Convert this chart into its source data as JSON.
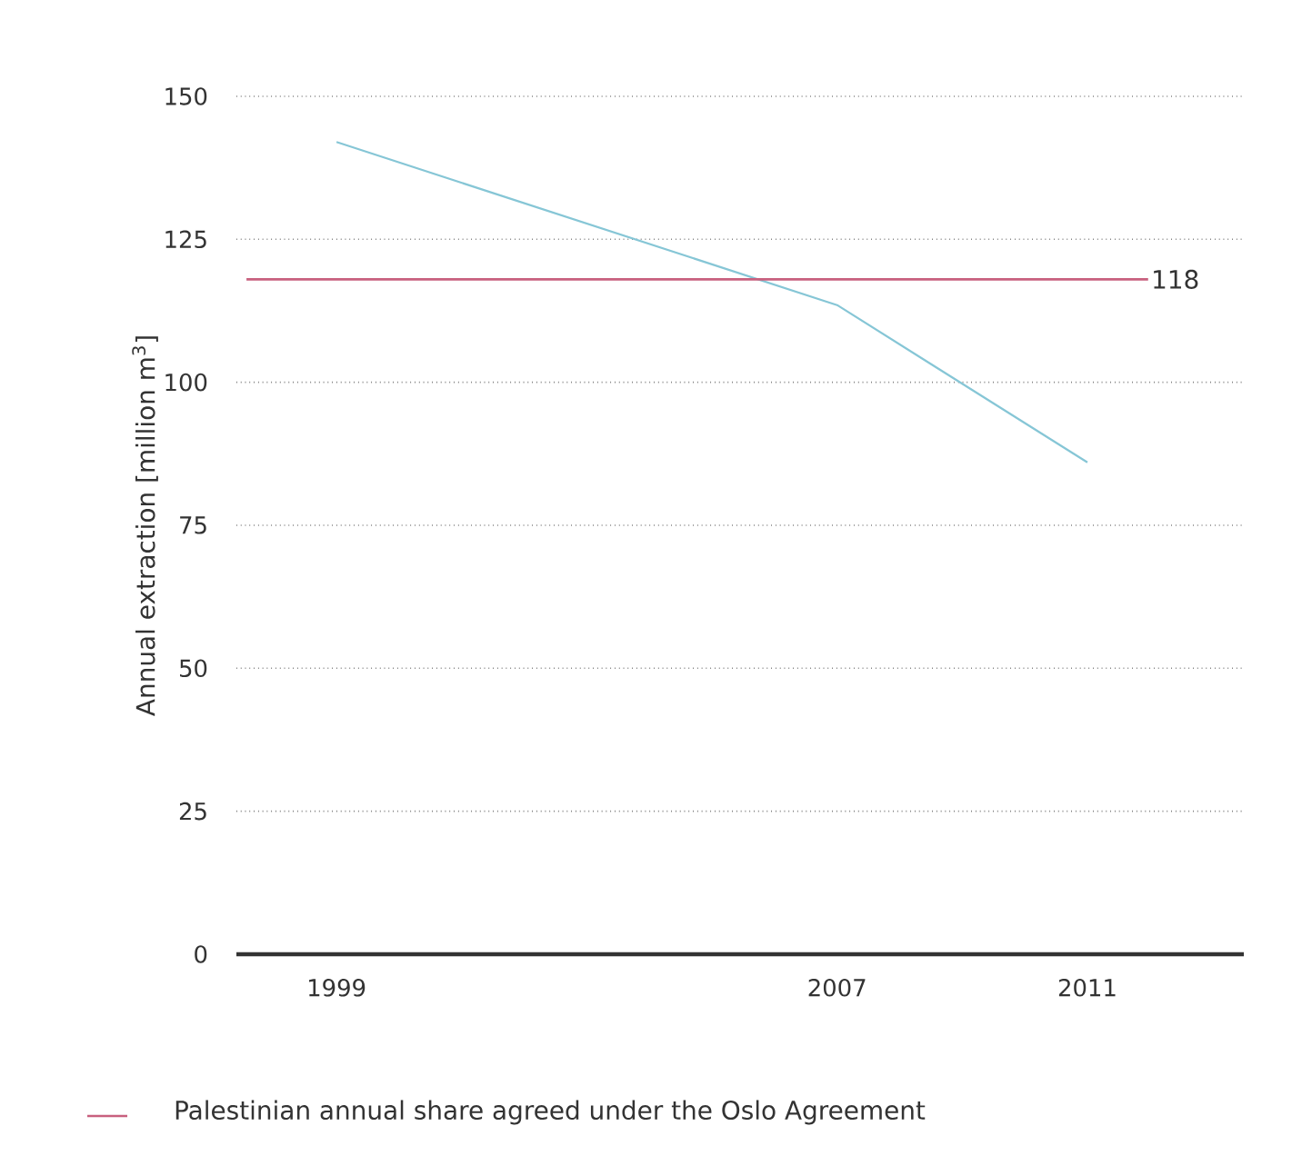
{
  "chart_data": {
    "type": "line",
    "ylabel": "Annual extraction [million m$^{3}$]",
    "x": [
      1999,
      2007,
      2011
    ],
    "series": [
      {
        "color": "#86c6d6",
        "values": [
          142,
          113.5,
          86
        ]
      }
    ],
    "xlim": [
      1997.4,
      2013.5
    ],
    "xticks": [
      1999,
      2007,
      2011
    ],
    "ylim": [
      0,
      150
    ],
    "yticks": [
      0,
      25,
      50,
      75,
      100,
      125,
      150
    ],
    "grid": "y",
    "marker": "none",
    "line_style": "solid",
    "ref_lines": [
      {
        "axis": "y",
        "value": 118,
        "label": "118",
        "color": "#c8607e"
      }
    ],
    "annotations": [
      "Palestinian annual share agreed under the Oslo Agreement"
    ]
  }
}
